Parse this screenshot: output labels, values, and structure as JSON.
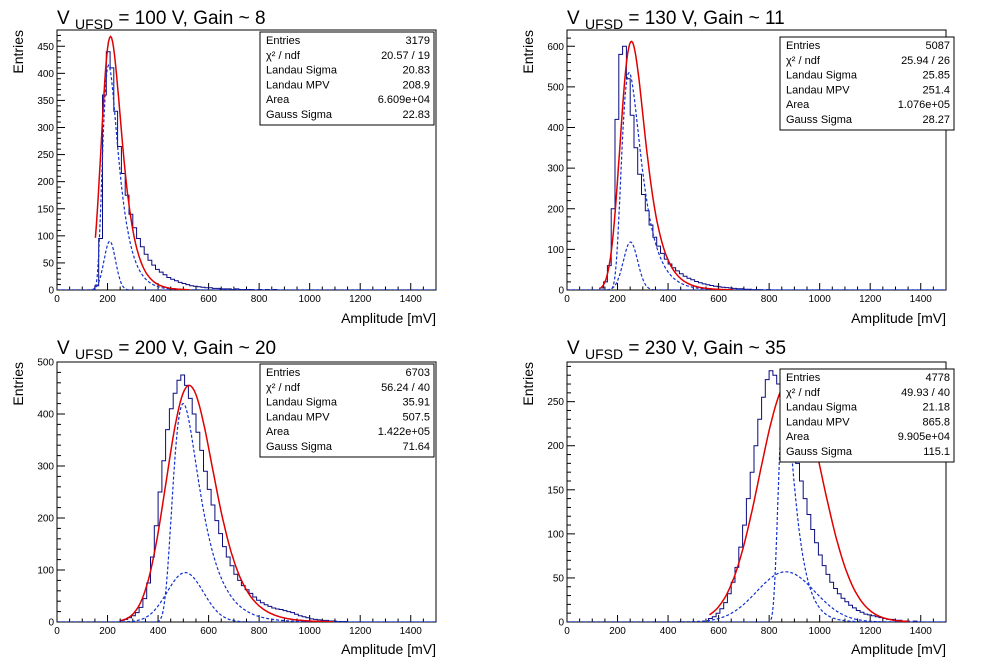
{
  "chart_data": [
    {
      "type": "bar",
      "title": "V UFSD = 100 V, Gain ~ 8",
      "title_parts": {
        "pre": "V",
        "sub": "UFSD",
        "post": "= 100 V, Gain ~ 8"
      },
      "xlabel": "Amplitude [mV]",
      "ylabel": "Entries",
      "xlim": [
        0,
        1500
      ],
      "ylim": [
        0,
        480
      ],
      "xticks": [
        0,
        200,
        400,
        600,
        800,
        1000,
        1200,
        1400
      ],
      "yticks": [
        0,
        50,
        100,
        150,
        200,
        250,
        300,
        350,
        400,
        450
      ],
      "grid": false,
      "stats": [
        {
          "label": "Entries",
          "value": "3179"
        },
        {
          "label": "χ² / ndf",
          "value": "20.57 / 19"
        },
        {
          "label": "Landau Sigma",
          "value": "20.83"
        },
        {
          "label": "Landau MPV",
          "value": "208.9"
        },
        {
          "label": "Area",
          "value": "6.609e+04"
        },
        {
          "label": "Gauss Sigma",
          "value": "22.83"
        }
      ],
      "landau_mpv": 208.9,
      "landau_sigma": 20.83,
      "gauss_sigma": 22.83,
      "fit_peak": 468,
      "landau_peak": 415,
      "gauss_peak": 90,
      "hist_start": 150,
      "hist_bin": 15,
      "hist_values": [
        8,
        95,
        360,
        440,
        410,
        330,
        265,
        215,
        175,
        140,
        115,
        95,
        80,
        66,
        55,
        46,
        38,
        33,
        28,
        23,
        20,
        17,
        14,
        12,
        10,
        8,
        7,
        6,
        5,
        4,
        4,
        3,
        3,
        2,
        2,
        2,
        1,
        2,
        1,
        1,
        1,
        1,
        0,
        1,
        0,
        1,
        0,
        1,
        0,
        0
      ]
    },
    {
      "type": "bar",
      "title": "V UFSD = 130 V, Gain ~ 11",
      "title_parts": {
        "pre": "V",
        "sub": "UFSD",
        "post": "= 130 V, Gain ~ 11"
      },
      "xlabel": "Amplitude [mV]",
      "ylabel": "Entries",
      "xlim": [
        0,
        1500
      ],
      "ylim": [
        0,
        640
      ],
      "xticks": [
        0,
        200,
        400,
        600,
        800,
        1000,
        1200,
        1400
      ],
      "yticks": [
        0,
        100,
        200,
        300,
        400,
        500,
        600
      ],
      "grid": false,
      "stats": [
        {
          "label": "Entries",
          "value": "5087"
        },
        {
          "label": "χ² / ndf",
          "value": "25.94 / 26"
        },
        {
          "label": "Landau Sigma",
          "value": "25.85"
        },
        {
          "label": "Landau MPV",
          "value": "251.4"
        },
        {
          "label": "Area",
          "value": "1.076e+05"
        },
        {
          "label": "Gauss Sigma",
          "value": "28.27"
        }
      ],
      "landau_mpv": 251.4,
      "landau_sigma": 25.85,
      "gauss_sigma": 28.27,
      "fit_peak": 612,
      "landau_peak": 535,
      "gauss_peak": 118,
      "hist_start": 130,
      "hist_bin": 15,
      "hist_values": [
        5,
        20,
        60,
        200,
        420,
        580,
        600,
        520,
        430,
        350,
        285,
        235,
        195,
        160,
        130,
        108,
        90,
        76,
        64,
        55,
        47,
        40,
        34,
        29,
        25,
        21,
        18,
        15,
        13,
        11,
        9,
        8,
        7,
        6,
        5,
        4,
        3,
        3,
        2,
        2,
        1,
        1,
        1,
        0,
        1,
        0,
        0
      ]
    },
    {
      "type": "bar",
      "title": "V UFSD = 200 V, Gain ~ 20",
      "title_parts": {
        "pre": "V",
        "sub": "UFSD",
        "post": "= 200 V, Gain ~ 20"
      },
      "xlabel": "Amplitude [mV]",
      "ylabel": "Entries",
      "xlim": [
        0,
        1500
      ],
      "ylim": [
        0,
        500
      ],
      "xticks": [
        0,
        200,
        400,
        600,
        800,
        1000,
        1200,
        1400
      ],
      "yticks": [
        0,
        100,
        200,
        300,
        400,
        500
      ],
      "grid": false,
      "stats": [
        {
          "label": "Entries",
          "value": "6703"
        },
        {
          "label": "χ² / ndf",
          "value": "56.24 / 40"
        },
        {
          "label": "Landau Sigma",
          "value": "35.91"
        },
        {
          "label": "Landau MPV",
          "value": "507.5"
        },
        {
          "label": "Area",
          "value": "1.422e+05"
        },
        {
          "label": "Gauss Sigma",
          "value": "71.64"
        }
      ],
      "landau_mpv": 507.5,
      "landau_sigma": 35.91,
      "gauss_sigma": 71.64,
      "fit_peak": 455,
      "landau_peak": 420,
      "gauss_peak": 95,
      "hist_start": 250,
      "hist_bin": 15,
      "hist_values": [
        3,
        5,
        8,
        12,
        18,
        28,
        45,
        75,
        125,
        185,
        250,
        310,
        370,
        410,
        440,
        465,
        475,
        455,
        430,
        400,
        365,
        330,
        290,
        255,
        225,
        195,
        170,
        145,
        125,
        108,
        92,
        80,
        70,
        62,
        55,
        48,
        42,
        37,
        33,
        30,
        27,
        25,
        24,
        22,
        20,
        18,
        15,
        12,
        10,
        8,
        6,
        5,
        4,
        3,
        3,
        2,
        2,
        1,
        1,
        1
      ]
    },
    {
      "type": "bar",
      "title": "V UFSD = 230 V, Gain ~ 35",
      "title_parts": {
        "pre": "V",
        "sub": "UFSD",
        "post": "= 230 V, Gain ~ 35"
      },
      "xlabel": "Amplitude [mV]",
      "ylabel": "Entries",
      "xlim": [
        0,
        1500
      ],
      "ylim": [
        0,
        295
      ],
      "xticks": [
        0,
        200,
        400,
        600,
        800,
        1000,
        1200,
        1400
      ],
      "yticks": [
        0,
        50,
        100,
        150,
        200,
        250
      ],
      "grid": false,
      "stats": [
        {
          "label": "Entries",
          "value": "4778"
        },
        {
          "label": "χ² / ndf",
          "value": "49.93 / 40"
        },
        {
          "label": "Landau Sigma",
          "value": "21.18"
        },
        {
          "label": "Landau MPV",
          "value": "865.8"
        },
        {
          "label": "Area",
          "value": "9.905e+04"
        },
        {
          "label": "Gauss Sigma",
          "value": "115.1"
        }
      ],
      "landau_mpv": 865.8,
      "landau_sigma": 21.18,
      "gauss_sigma": 115.1,
      "fit_peak": 275,
      "landau_peak": 255,
      "gauss_peak": 57,
      "hist_start": 560,
      "hist_bin": 15,
      "hist_values": [
        4,
        6,
        10,
        15,
        22,
        32,
        45,
        62,
        85,
        110,
        140,
        170,
        200,
        230,
        255,
        275,
        285,
        280,
        270,
        255,
        240,
        220,
        200,
        180,
        160,
        140,
        122,
        105,
        90,
        76,
        64,
        54,
        45,
        38,
        32,
        27,
        23,
        19,
        16,
        13,
        11,
        9,
        8,
        7,
        6,
        5,
        4,
        3,
        3,
        2,
        2,
        1,
        1,
        0,
        1,
        0
      ]
    }
  ]
}
